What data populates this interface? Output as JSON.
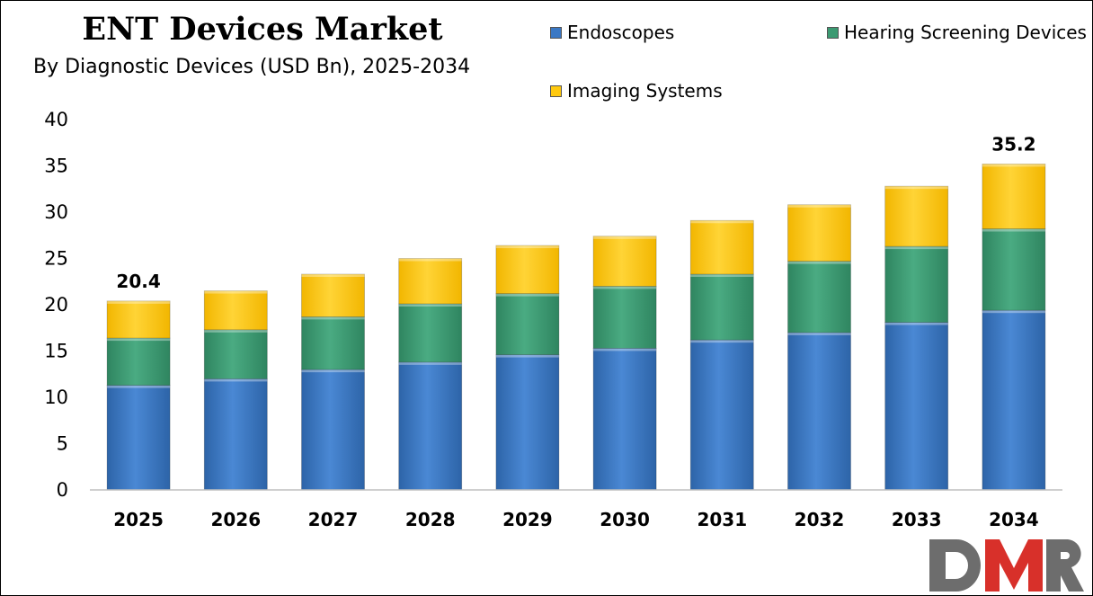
{
  "chart_data": {
    "type": "bar",
    "stacked": true,
    "title": "ENT Devices Market",
    "subtitle": "By Diagnostic Devices (USD Bn), 2025-2034",
    "categories": [
      "2025",
      "2026",
      "2027",
      "2028",
      "2029",
      "2030",
      "2031",
      "2032",
      "2033",
      "2034"
    ],
    "series": [
      {
        "name": "Endoscopes",
        "color": "#3b78c4",
        "values": [
          11.3,
          12.0,
          13.0,
          13.8,
          14.6,
          15.3,
          16.2,
          17.0,
          18.1,
          19.4
        ]
      },
      {
        "name": "Hearing Screening Devices",
        "color": "#3c9a72",
        "values": [
          5.1,
          5.3,
          5.7,
          6.3,
          6.6,
          6.7,
          7.1,
          7.7,
          8.2,
          8.8
        ]
      },
      {
        "name": "Imaging Systems",
        "color": "#ffc90e",
        "values": [
          4.0,
          4.2,
          4.6,
          4.9,
          5.2,
          5.4,
          5.8,
          6.1,
          6.5,
          7.0
        ]
      }
    ],
    "totals_labels": [
      {
        "category": "2025",
        "value": 20.4,
        "text": "20.4"
      },
      {
        "category": "2034",
        "value": 35.2,
        "text": "35.2"
      }
    ],
    "ylim": [
      0,
      40
    ],
    "yticks": [
      0,
      5,
      10,
      15,
      20,
      25,
      30,
      35,
      40
    ],
    "grid": false,
    "legend_placement": "top-right"
  },
  "logo": {
    "text": "DMR",
    "colors": {
      "D": "#6d6d6d",
      "M": "#d8302a",
      "R": "#6d6d6d"
    }
  }
}
